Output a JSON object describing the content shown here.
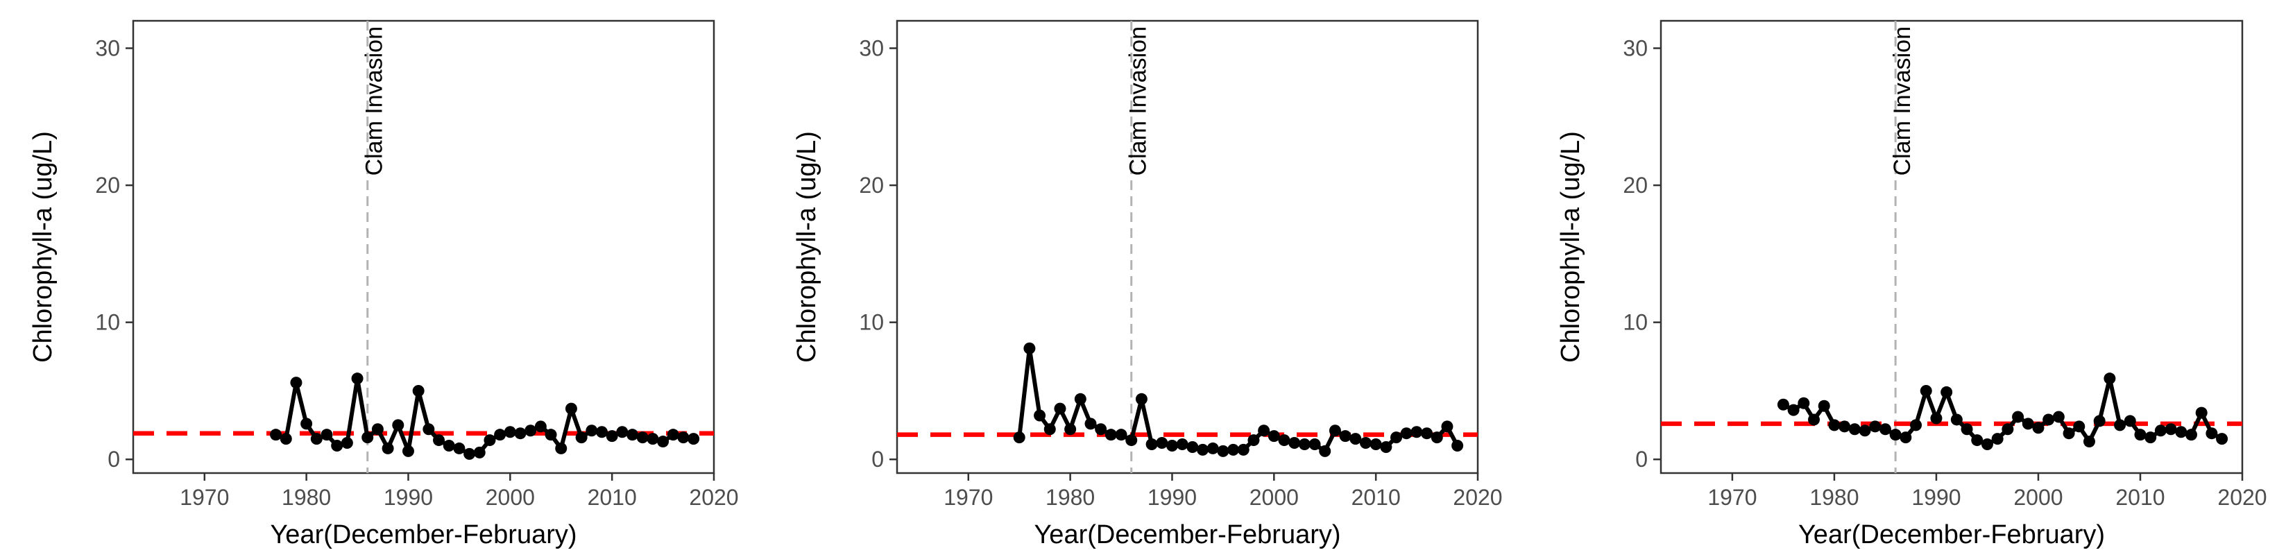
{
  "chart_data": [
    {
      "type": "line",
      "xlabel": "Year(December-February)",
      "ylabel": "Chlorophyll-a (ug/L)",
      "xlim": [
        1963,
        2020
      ],
      "ylim": [
        -1,
        32
      ],
      "xticks": [
        1970,
        1980,
        1990,
        2000,
        2010,
        2020
      ],
      "yticks": [
        0,
        10,
        20,
        30
      ],
      "grid": false,
      "annotation": {
        "text": "Clam Invasion",
        "x": 1986
      },
      "reference_line": {
        "y": 1.9,
        "color": "#ff0000"
      },
      "series": [
        {
          "color": "#000000",
          "x": [
            1977,
            1978,
            1979,
            1980,
            1981,
            1982,
            1983,
            1984,
            1985,
            1986,
            1987,
            1988,
            1989,
            1990,
            1991,
            1992,
            1993,
            1994,
            1995,
            1996,
            1997,
            1998,
            1999,
            2000,
            2001,
            2002,
            2003,
            2004,
            2005,
            2006,
            2007,
            2008,
            2009,
            2010,
            2011,
            2012,
            2013,
            2014,
            2015,
            2016,
            2017,
            2018
          ],
          "y": [
            1.8,
            1.5,
            5.6,
            2.6,
            1.5,
            1.8,
            1.0,
            1.2,
            5.9,
            1.6,
            2.2,
            0.8,
            2.5,
            0.6,
            5.0,
            2.2,
            1.4,
            1.0,
            0.8,
            0.4,
            0.5,
            1.4,
            1.8,
            2.0,
            1.9,
            2.1,
            2.4,
            1.8,
            0.8,
            3.7,
            1.6,
            2.1,
            2.0,
            1.7,
            2.0,
            1.8,
            1.6,
            1.5,
            1.3,
            1.8,
            1.6,
            1.5
          ]
        }
      ]
    },
    {
      "type": "line",
      "xlabel": "Year(December-February)",
      "ylabel": "Chlorophyll-a (ug/L)",
      "xlim": [
        1963,
        2020
      ],
      "ylim": [
        -1,
        32
      ],
      "xticks": [
        1970,
        1980,
        1990,
        2000,
        2010,
        2020
      ],
      "yticks": [
        0,
        10,
        20,
        30
      ],
      "grid": false,
      "annotation": {
        "text": "Clam Invasion",
        "x": 1986
      },
      "reference_line": {
        "y": 1.8,
        "color": "#ff0000"
      },
      "series": [
        {
          "color": "#000000",
          "x": [
            1975,
            1976,
            1977,
            1978,
            1979,
            1980,
            1981,
            1982,
            1983,
            1984,
            1985,
            1986,
            1987,
            1988,
            1989,
            1990,
            1991,
            1992,
            1993,
            1994,
            1995,
            1996,
            1997,
            1998,
            1999,
            2000,
            2001,
            2002,
            2003,
            2004,
            2005,
            2006,
            2007,
            2008,
            2009,
            2010,
            2011,
            2012,
            2013,
            2014,
            2015,
            2016,
            2017,
            2018
          ],
          "y": [
            1.6,
            8.1,
            3.2,
            2.2,
            3.7,
            2.2,
            4.4,
            2.6,
            2.2,
            1.8,
            1.8,
            1.4,
            4.4,
            1.1,
            1.2,
            1.0,
            1.1,
            0.9,
            0.7,
            0.8,
            0.6,
            0.7,
            0.7,
            1.4,
            2.1,
            1.7,
            1.4,
            1.2,
            1.1,
            1.1,
            0.6,
            2.1,
            1.7,
            1.5,
            1.2,
            1.1,
            0.9,
            1.6,
            1.9,
            2.0,
            1.9,
            1.6,
            2.4,
            1.0
          ]
        }
      ]
    },
    {
      "type": "line",
      "xlabel": "Year(December-February)",
      "ylabel": "Chlorophyll-a (ug/L)",
      "xlim": [
        1963,
        2020
      ],
      "ylim": [
        -1,
        32
      ],
      "xticks": [
        1970,
        1980,
        1990,
        2000,
        2010,
        2020
      ],
      "yticks": [
        0,
        10,
        20,
        30
      ],
      "grid": false,
      "annotation": {
        "text": "Clam Invasion",
        "x": 1986
      },
      "reference_line": {
        "y": 2.6,
        "color": "#ff0000"
      },
      "series": [
        {
          "color": "#000000",
          "x": [
            1975,
            1976,
            1977,
            1978,
            1979,
            1980,
            1981,
            1982,
            1983,
            1984,
            1985,
            1986,
            1987,
            1988,
            1989,
            1990,
            1991,
            1992,
            1993,
            1994,
            1995,
            1996,
            1997,
            1998,
            1999,
            2000,
            2001,
            2002,
            2003,
            2004,
            2005,
            2006,
            2007,
            2008,
            2009,
            2010,
            2011,
            2012,
            2013,
            2014,
            2015,
            2016,
            2017,
            2018
          ],
          "y": [
            4.0,
            3.6,
            4.1,
            2.9,
            3.9,
            2.5,
            2.4,
            2.2,
            2.1,
            2.4,
            2.2,
            1.8,
            1.6,
            2.5,
            5.0,
            3.0,
            4.9,
            2.9,
            2.2,
            1.4,
            1.1,
            1.5,
            2.2,
            3.1,
            2.6,
            2.3,
            2.9,
            3.1,
            1.9,
            2.4,
            1.3,
            2.8,
            5.9,
            2.5,
            2.8,
            1.8,
            1.6,
            2.1,
            2.2,
            2.0,
            1.8,
            3.4,
            1.9,
            1.5
          ]
        }
      ]
    }
  ]
}
